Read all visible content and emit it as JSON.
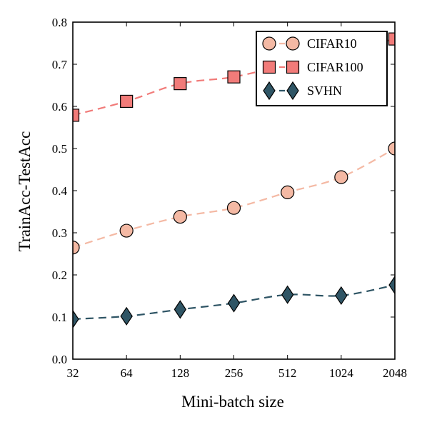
{
  "chart_data": {
    "type": "line",
    "title": "",
    "xlabel": "Mini-batch size",
    "ylabel": "TrainAcc-TestAcc",
    "categories": [
      "32",
      "64",
      "128",
      "256",
      "512",
      "1024",
      "2048"
    ],
    "x_scale": "log2",
    "ylim": [
      0.0,
      0.8
    ],
    "yticks": [
      "0.0",
      "0.1",
      "0.2",
      "0.3",
      "0.4",
      "0.5",
      "0.6",
      "0.7",
      "0.8"
    ],
    "grid": false,
    "legend_position": "top-right",
    "series": [
      {
        "name": "CIFAR10",
        "marker": "circle",
        "color": "#f4b9a4",
        "values": [
          0.265,
          0.305,
          0.338,
          0.359,
          0.396,
          0.432,
          0.5
        ]
      },
      {
        "name": "CIFAR100",
        "marker": "square",
        "color": "#f17b79",
        "values": [
          0.579,
          0.612,
          0.654,
          0.67,
          0.7,
          0.73,
          0.76
        ]
      },
      {
        "name": "SVHN",
        "marker": "diamond",
        "color": "#2f5565",
        "values": [
          0.095,
          0.102,
          0.118,
          0.133,
          0.153,
          0.151,
          0.176
        ]
      }
    ]
  }
}
